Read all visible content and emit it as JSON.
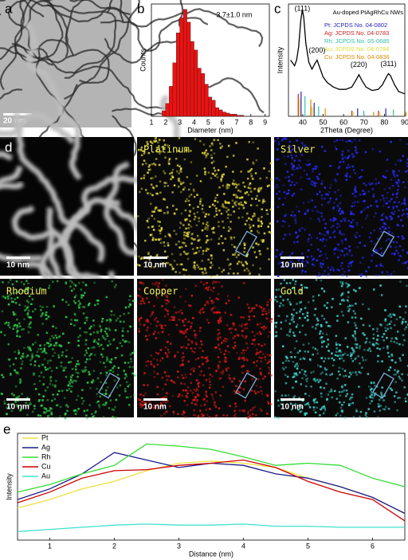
{
  "panels": {
    "a": {
      "letter": "a",
      "scale_bar": "20 nm"
    },
    "d": {
      "letter": "d",
      "haadf_scale_bar": "10 nm",
      "maps": [
        {
          "element": "Platinum",
          "color": "#e6dc3c",
          "scale_bar": "10 nm"
        },
        {
          "element": "Silver",
          "color": "#2a2aff",
          "scale_bar": "10 nm"
        },
        {
          "element": "Rhodium",
          "color": "#2fd24a",
          "scale_bar": "10 nm"
        },
        {
          "element": "Copper",
          "color": "#e01818",
          "scale_bar": "10 nm"
        },
        {
          "element": "Gold",
          "color": "#3fd8d0",
          "scale_bar": "10 nm"
        }
      ]
    }
  },
  "chart_data": [
    {
      "letter": "b",
      "type": "histogram",
      "annotation": "3.7±1.0 nm",
      "xlabel": "Diameter (nm)",
      "ylabel": "Counts",
      "bins": [
        1.75,
        2.0,
        2.25,
        2.5,
        2.75,
        3.0,
        3.25,
        3.5,
        3.75,
        4.0,
        4.25,
        4.5,
        4.75,
        5.0,
        5.25,
        5.5,
        5.75,
        6.0,
        6.25,
        6.5,
        6.75,
        7.0,
        7.25,
        7.5
      ],
      "values": [
        5,
        12,
        28,
        50,
        78,
        92,
        100,
        88,
        70,
        62,
        45,
        40,
        30,
        18,
        15,
        8,
        6,
        4,
        3,
        2,
        2,
        1,
        1
      ],
      "color": "#ee1111",
      "xlim": [
        1,
        9.3
      ],
      "xticks": [
        1,
        2,
        3,
        4,
        5,
        6,
        7,
        8,
        9
      ],
      "ylim": [
        0,
        105
      ]
    },
    {
      "letter": "c",
      "type": "line",
      "xlabel": "2Theta (Degree)",
      "ylabel": "Intensity",
      "legend_title": "Au-doped PtAgRhCu NWs",
      "x": [
        34,
        36,
        37,
        38,
        39,
        39.8,
        40.5,
        41.5,
        43,
        44.5,
        46,
        47,
        48,
        50,
        52,
        55,
        58,
        61,
        64,
        66,
        67.5,
        69,
        71,
        74,
        77,
        79,
        81,
        82,
        83,
        85,
        87,
        90
      ],
      "values": [
        50,
        45,
        50,
        62,
        85,
        95,
        88,
        65,
        48,
        42,
        47,
        50,
        45,
        35,
        30,
        26,
        24,
        24,
        26,
        32,
        37,
        32,
        26,
        23,
        24,
        28,
        35,
        38,
        36,
        28,
        22,
        20
      ],
      "color": "#000000",
      "xlim": [
        33,
        90
      ],
      "xticks": [
        40,
        50,
        60,
        70,
        80,
        90
      ],
      "ylim": [
        0,
        100
      ],
      "peaks": [
        {
          "label": "(111)",
          "x": 39.8
        },
        {
          "label": "(200)",
          "x": 47
        },
        {
          "label": "(220)",
          "x": 67.5
        },
        {
          "label": "(311)",
          "x": 82
        }
      ],
      "references": [
        {
          "name": "Pt:  JCPDS No. 04-0802",
          "color": "#1f1fbf",
          "x": [
            39.8,
            46.2,
            67.5,
            81.3
          ],
          "values": [
            22,
            12,
            7,
            7
          ]
        },
        {
          "name": "Ag:  JCPDS No. 04-0783",
          "color": "#cc2222",
          "x": [
            38.1,
            44.3,
            64.4,
            77.4
          ],
          "values": [
            20,
            9,
            5,
            5
          ]
        },
        {
          "name": "Rh:  JCPDS No. 05-0685",
          "color": "#33bbaa",
          "x": [
            41.1,
            47.8,
            69.9,
            84.4
          ],
          "values": [
            18,
            9,
            5,
            6
          ]
        },
        {
          "name": "Au:  JCPDS No. 04-0784",
          "color": "#dddd33",
          "x": [
            38.2,
            44.4,
            64.6,
            77.5
          ],
          "values": [
            16,
            8,
            4,
            4
          ]
        },
        {
          "name": "Cu:  JCPDS No. 04-0836",
          "color": "#dd8800",
          "x": [
            43.3,
            50.4,
            74.1,
            89.9
          ],
          "values": [
            15,
            7,
            4,
            4
          ]
        }
      ]
    },
    {
      "letter": "e",
      "type": "line",
      "xlabel": "Distance (nm)",
      "ylabel": "Intensity",
      "x": [
        0.5,
        1,
        1.5,
        2,
        2.5,
        3,
        3.5,
        4,
        4.5,
        5,
        5.5,
        6,
        6.5
      ],
      "xlim": [
        0.5,
        6.5
      ],
      "xticks": [
        1,
        2,
        3,
        4,
        5,
        6
      ],
      "ylim": [
        0,
        100
      ],
      "series": [
        {
          "name": "Pt",
          "color": "#f0e040",
          "values": [
            30,
            38,
            48,
            55,
            65,
            72,
            74,
            72,
            68,
            58,
            50,
            40,
            25
          ]
        },
        {
          "name": "Ag",
          "color": "#1a1a8c",
          "values": [
            38,
            48,
            62,
            82,
            75,
            68,
            72,
            70,
            62,
            58,
            50,
            40,
            25
          ]
        },
        {
          "name": "Rh",
          "color": "#33dd33",
          "values": [
            45,
            52,
            62,
            70,
            90,
            88,
            85,
            78,
            70,
            72,
            70,
            58,
            50
          ]
        },
        {
          "name": "Cu",
          "color": "#cc0000",
          "values": [
            35,
            45,
            58,
            65,
            66,
            70,
            72,
            75,
            68,
            55,
            45,
            38,
            18
          ]
        },
        {
          "name": "Au",
          "color": "#40e0d0",
          "values": [
            8,
            10,
            12,
            14,
            15,
            14,
            14,
            15,
            13,
            13,
            12,
            12,
            12
          ]
        }
      ]
    }
  ]
}
